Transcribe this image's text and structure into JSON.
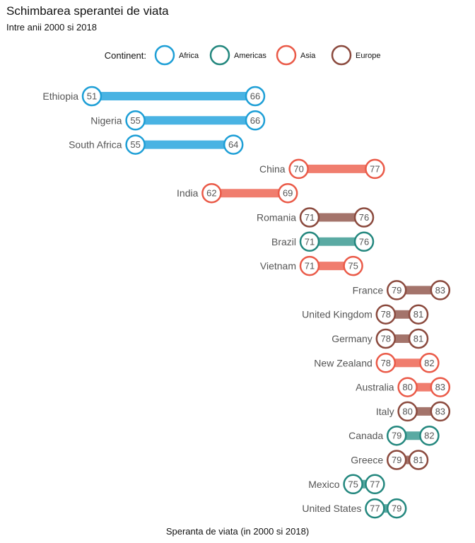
{
  "chart_data": {
    "type": "dumbbell",
    "title": "Schimbarea sperantei de viata",
    "subtitle": "Intre anii 2000 si 2018",
    "xlabel": "Speranta de viata (in 2000 si 2018)",
    "ylabel": "",
    "xlim": [
      50,
      85
    ],
    "grid": false,
    "legend_position": "top",
    "legend_title": "Continent:",
    "continents": [
      {
        "name": "Africa",
        "color": "#1e9fd6",
        "fill": "#49b3e3"
      },
      {
        "name": "Americas",
        "color": "#23877e",
        "fill": "#5aaaa3"
      },
      {
        "name": "Asia",
        "color": "#ea5a48",
        "fill": "#f07d6e"
      },
      {
        "name": "Europe",
        "color": "#8b4a3e",
        "fill": "#a4746b"
      }
    ],
    "rows": [
      {
        "country": "Ethiopia",
        "continent": "Africa",
        "y2000": 51,
        "y2018": 66
      },
      {
        "country": "Nigeria",
        "continent": "Africa",
        "y2000": 55,
        "y2018": 66
      },
      {
        "country": "South Africa",
        "continent": "Africa",
        "y2000": 55,
        "y2018": 64
      },
      {
        "country": "China",
        "continent": "Asia",
        "y2000": 70,
        "y2018": 77
      },
      {
        "country": "India",
        "continent": "Asia",
        "y2000": 62,
        "y2018": 69
      },
      {
        "country": "Romania",
        "continent": "Europe",
        "y2000": 71,
        "y2018": 76
      },
      {
        "country": "Brazil",
        "continent": "Americas",
        "y2000": 71,
        "y2018": 76
      },
      {
        "country": "Vietnam",
        "continent": "Asia",
        "y2000": 71,
        "y2018": 75
      },
      {
        "country": "France",
        "continent": "Europe",
        "y2000": 79,
        "y2018": 83
      },
      {
        "country": "United Kingdom",
        "continent": "Europe",
        "y2000": 78,
        "y2018": 81
      },
      {
        "country": "Germany",
        "continent": "Europe",
        "y2000": 78,
        "y2018": 81
      },
      {
        "country": "New Zealand",
        "continent": "Asia",
        "y2000": 78,
        "y2018": 82
      },
      {
        "country": "Australia",
        "continent": "Asia",
        "y2000": 80,
        "y2018": 83
      },
      {
        "country": "Italy",
        "continent": "Europe",
        "y2000": 80,
        "y2018": 83
      },
      {
        "country": "Canada",
        "continent": "Americas",
        "y2000": 79,
        "y2018": 82
      },
      {
        "country": "Greece",
        "continent": "Europe",
        "y2000": 79,
        "y2018": 81
      },
      {
        "country": "Mexico",
        "continent": "Americas",
        "y2000": 75,
        "y2018": 77
      },
      {
        "country": "United States",
        "continent": "Americas",
        "y2000": 77,
        "y2018": 79
      }
    ]
  }
}
